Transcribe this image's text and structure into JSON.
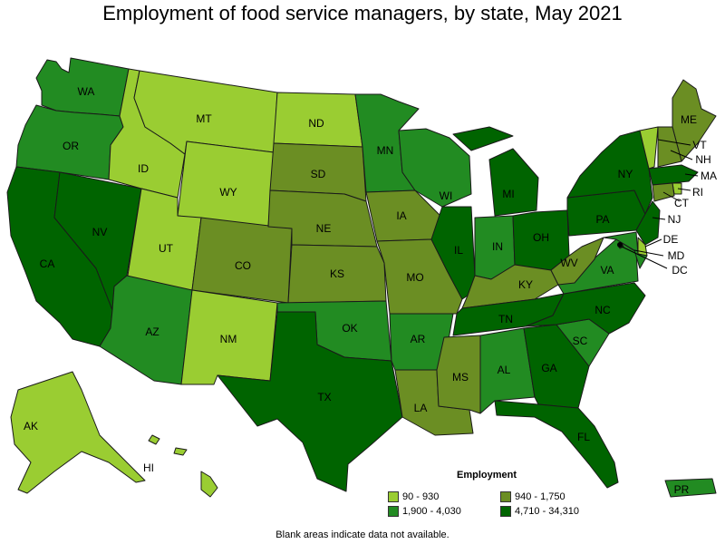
{
  "title": "Employment of food service managers, by state, May 2021",
  "legend": {
    "title": "Employment",
    "bins": [
      {
        "label": "90 - 930",
        "color": "#9acd32"
      },
      {
        "label": "940 - 1,750",
        "color": "#6b8e23"
      },
      {
        "label": "1,900 - 4,030",
        "color": "#228b22"
      },
      {
        "label": "4,710 - 34,310",
        "color": "#006400"
      }
    ]
  },
  "footnote": "Blank areas indicate data not available.",
  "states": [
    {
      "code": "WA",
      "bin": 2
    },
    {
      "code": "OR",
      "bin": 2
    },
    {
      "code": "CA",
      "bin": 3
    },
    {
      "code": "NV",
      "bin": 3
    },
    {
      "code": "ID",
      "bin": 0
    },
    {
      "code": "MT",
      "bin": 0
    },
    {
      "code": "WY",
      "bin": 0
    },
    {
      "code": "UT",
      "bin": 0
    },
    {
      "code": "AZ",
      "bin": 2
    },
    {
      "code": "CO",
      "bin": 1
    },
    {
      "code": "NM",
      "bin": 0
    },
    {
      "code": "ND",
      "bin": 0
    },
    {
      "code": "SD",
      "bin": 1
    },
    {
      "code": "NE",
      "bin": 1
    },
    {
      "code": "KS",
      "bin": 1
    },
    {
      "code": "OK",
      "bin": 2
    },
    {
      "code": "TX",
      "bin": 3
    },
    {
      "code": "MN",
      "bin": 2
    },
    {
      "code": "IA",
      "bin": 1
    },
    {
      "code": "MO",
      "bin": 1
    },
    {
      "code": "AR",
      "bin": 2
    },
    {
      "code": "LA",
      "bin": 1
    },
    {
      "code": "WI",
      "bin": 2
    },
    {
      "code": "IL",
      "bin": 3
    },
    {
      "code": "MS",
      "bin": 1
    },
    {
      "code": "MI",
      "bin": 3
    },
    {
      "code": "IN",
      "bin": 2
    },
    {
      "code": "KY",
      "bin": 1
    },
    {
      "code": "TN",
      "bin": 3
    },
    {
      "code": "AL",
      "bin": 2
    },
    {
      "code": "OH",
      "bin": 3
    },
    {
      "code": "GA",
      "bin": 3
    },
    {
      "code": "FL",
      "bin": 3
    },
    {
      "code": "SC",
      "bin": 2
    },
    {
      "code": "NC",
      "bin": 3
    },
    {
      "code": "VA",
      "bin": 2
    },
    {
      "code": "WV",
      "bin": 1
    },
    {
      "code": "PA",
      "bin": 3
    },
    {
      "code": "NY",
      "bin": 3
    },
    {
      "code": "ME",
      "bin": 1
    },
    {
      "code": "VT",
      "bin": 0
    },
    {
      "code": "NH",
      "bin": 1
    },
    {
      "code": "MA",
      "bin": 3
    },
    {
      "code": "RI",
      "bin": 0
    },
    {
      "code": "CT",
      "bin": 1
    },
    {
      "code": "NJ",
      "bin": 3
    },
    {
      "code": "DE",
      "bin": 0
    },
    {
      "code": "MD",
      "bin": 2
    },
    {
      "code": "DC",
      "bin": 2
    },
    {
      "code": "AK",
      "bin": 0
    },
    {
      "code": "HI",
      "bin": 0
    },
    {
      "code": "PR",
      "bin": 2
    }
  ]
}
